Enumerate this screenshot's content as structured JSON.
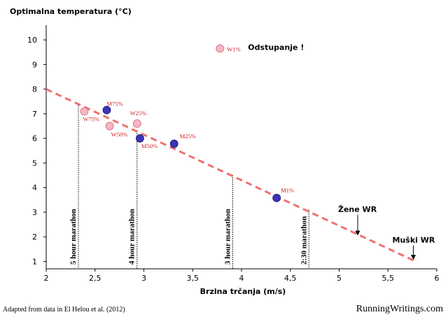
{
  "chart_data": {
    "type": "scatter",
    "title": "Optimalna temperatura (°C)",
    "xlabel": "Brzina trčanja (m/s)",
    "ylabel": "",
    "xlim": [
      2,
      6
    ],
    "ylim": [
      0.7,
      10.6
    ],
    "xticks": [
      2,
      2.5,
      3,
      3.5,
      4,
      4.5,
      5,
      5.5,
      6
    ],
    "xtick_labels": [
      "2",
      "2,5",
      "3",
      "3,5",
      "4",
      "4,5",
      "5",
      "5,5",
      "6"
    ],
    "yticks": [
      1,
      2,
      3,
      4,
      5,
      6,
      7,
      8,
      9,
      10
    ],
    "ytick_labels": [
      "1",
      "2",
      "3",
      "4",
      "5",
      "6",
      "7",
      "8",
      "9",
      "10"
    ],
    "grid": false,
    "colors": {
      "women": "#f7b6c2",
      "men": "#3b34b8",
      "trend": "#f07070",
      "point_label": "#d42020"
    },
    "series": [
      {
        "group": "women",
        "points": [
          {
            "label": "W75%",
            "x": 2.39,
            "y": 7.1
          },
          {
            "label": "W50%",
            "x": 2.65,
            "y": 6.5
          },
          {
            "label": "W25%",
            "x": 2.93,
            "y": 6.6
          },
          {
            "label": "W1%",
            "x": 3.78,
            "y": 9.65
          }
        ]
      },
      {
        "group": "men",
        "points": [
          {
            "label": "M75%",
            "x": 2.62,
            "y": 7.15
          },
          {
            "label": "M50%",
            "x": 2.96,
            "y": 6.0
          },
          {
            "label": "M25%",
            "x": 3.31,
            "y": 5.78
          },
          {
            "label": "M1%",
            "x": 4.36,
            "y": 3.58
          }
        ]
      }
    ],
    "trendline": {
      "x": [
        2.0,
        5.8
      ],
      "y": [
        8.0,
        0.97
      ]
    },
    "vertical_markers": [
      {
        "label": "5 hour marathon",
        "x": 2.33,
        "y_top": 7.35
      },
      {
        "label": "4 hour marathon",
        "x": 2.93,
        "y_top": 6.3
      },
      {
        "label": "3 hour marathon",
        "x": 3.91,
        "y_top": 4.5
      },
      {
        "label": "2:30 marathon",
        "x": 4.69,
        "y_top": 3.1
      }
    ],
    "annotations": {
      "outlier": "Odstupanje !",
      "women_wr": "Žene WR",
      "men_wr": "Muški WR",
      "women_wr_arrow": {
        "x": 5.19,
        "y_from": 2.9,
        "y_to": 2.05
      },
      "men_wr_arrow": {
        "x": 5.76,
        "y_from": 1.65,
        "y_to": 1.07
      }
    },
    "source_note": "Adapted from data in El Helou et al. (2012)",
    "watermark": "RunningWritings.com"
  }
}
